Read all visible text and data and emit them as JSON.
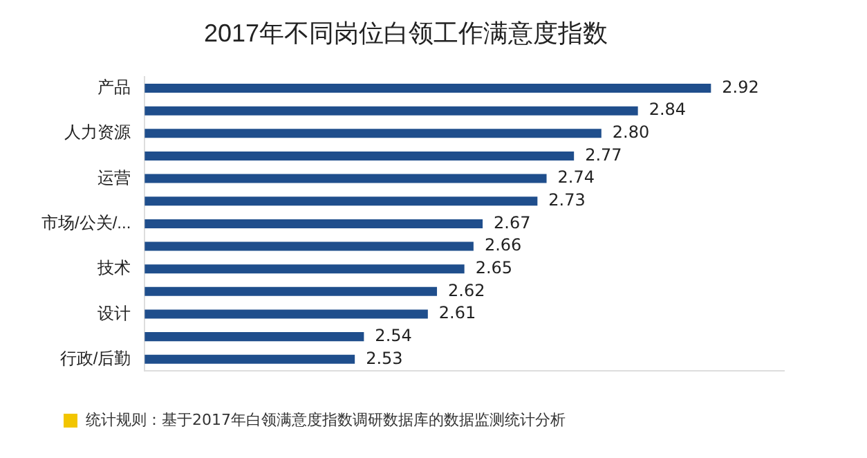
{
  "chart_data": {
    "type": "bar",
    "orientation": "horizontal",
    "title": "2017年不同岗位白领工作满意度指数",
    "categories": [
      "产品",
      null,
      "人力资源",
      null,
      "运营",
      null,
      "市场/公关/...",
      null,
      "技术",
      null,
      "设计",
      null,
      "行政/后勤"
    ],
    "values": [
      2.92,
      2.84,
      2.8,
      2.77,
      2.74,
      2.73,
      2.67,
      2.66,
      2.65,
      2.62,
      2.61,
      2.54,
      2.53
    ],
    "color": "#1f4e8c",
    "xlim": [
      2.3,
      3.0
    ],
    "tick_labels": "y",
    "grid": false,
    "legend": false,
    "value_labels": [
      "2.92",
      "2.84",
      "2.80",
      "2.77",
      "2.74",
      "2.73",
      "2.67",
      "2.66",
      "2.65",
      "2.62",
      "2.61",
      "2.54",
      "2.53"
    ],
    "annotations": [
      "统计规则：基于2017年白领满意度指数调研数据库的数据监测统计分析"
    ]
  }
}
